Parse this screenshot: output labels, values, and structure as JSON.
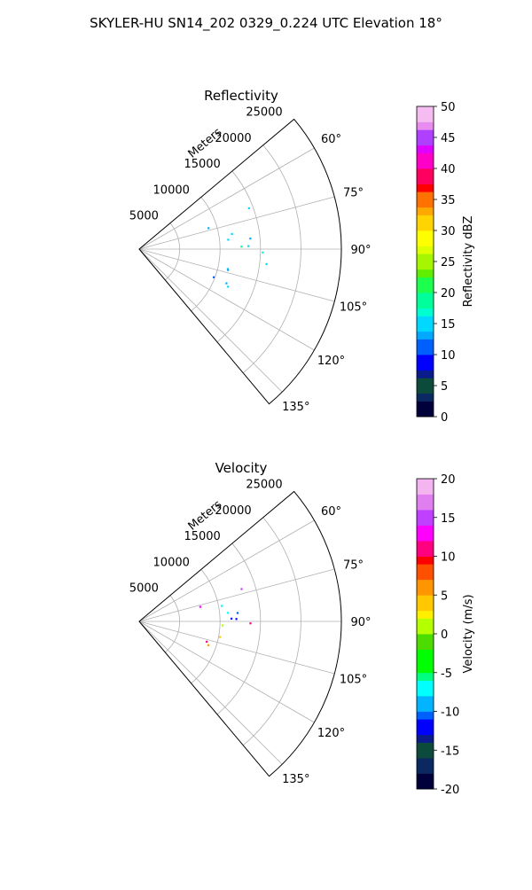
{
  "figure": {
    "title": "SKYLER-HU  SN14_202  0329_0.224 UTC Elevation 18°"
  },
  "chart_data": [
    {
      "type": "heatmap",
      "title": "Reflectivity",
      "projection": "polar-sector",
      "range_axis_label": "Meters",
      "range_ticks": [
        5000,
        10000,
        15000,
        20000,
        25000
      ],
      "range_tick_labels": [
        "5000",
        "10000",
        "15000",
        "20000",
        "25000"
      ],
      "range_lim": [
        0,
        25000
      ],
      "azimuth_lim": [
        50,
        140
      ],
      "azimuth_ticks": [
        60,
        75,
        90,
        105,
        120,
        135
      ],
      "azimuth_tick_labels": [
        "60°",
        "75°",
        "90°",
        "105°",
        "120°",
        "135°"
      ],
      "grid": true,
      "colorbar": {
        "label": "Reflectivity dBZ",
        "min": 0,
        "max": 50,
        "ticks": [
          0,
          5,
          10,
          15,
          20,
          25,
          30,
          35,
          40,
          45,
          50
        ],
        "tick_labels": [
          "0",
          "5",
          "10",
          "15",
          "20",
          "25",
          "30",
          "35",
          "40",
          "45",
          "50"
        ]
      },
      "echo_regions": [
        {
          "az_range": [
            65,
            88
          ],
          "r_range": [
            10000,
            15000
          ],
          "value": 14
        },
        {
          "az_range": [
            85,
            98
          ],
          "r_range": [
            11500,
            16500
          ],
          "value": 17
        },
        {
          "az_range": [
            98,
            113
          ],
          "r_range": [
            8500,
            15500
          ],
          "value": 13
        },
        {
          "az_range": [
            70,
            80
          ],
          "r_range": [
            8000,
            10000
          ],
          "value": 12
        },
        {
          "az_range": [
            93,
            96
          ],
          "r_range": [
            16500,
            18000
          ],
          "value": 18
        }
      ]
    },
    {
      "type": "heatmap",
      "title": "Velocity",
      "projection": "polar-sector",
      "range_axis_label": "Meters",
      "range_ticks": [
        5000,
        10000,
        15000,
        20000,
        25000
      ],
      "range_tick_labels": [
        "5000",
        "10000",
        "15000",
        "20000",
        "25000"
      ],
      "range_lim": [
        0,
        25000
      ],
      "azimuth_lim": [
        50,
        140
      ],
      "azimuth_ticks": [
        60,
        75,
        90,
        105,
        120,
        135
      ],
      "azimuth_tick_labels": [
        "60°",
        "75°",
        "90°",
        "105°",
        "120°",
        "135°"
      ],
      "grid": true,
      "colorbar": {
        "label": "Velocity (m/s)",
        "min": -20,
        "max": 20,
        "ticks": [
          -20,
          -15,
          -10,
          -5,
          0,
          5,
          10,
          15,
          20
        ],
        "tick_labels": [
          "-20",
          "-15",
          "-10",
          "-5",
          "0",
          "5",
          "10",
          "15",
          "20"
        ]
      },
      "echo_regions": [
        {
          "az_range": [
            65,
            88
          ],
          "r_range": [
            10000,
            13000
          ],
          "value": -8
        },
        {
          "az_range": [
            80,
            100
          ],
          "r_range": [
            10500,
            12500
          ],
          "value": -11
        },
        {
          "az_range": [
            65,
            92
          ],
          "r_range": [
            13000,
            14500
          ],
          "value": 14
        },
        {
          "az_range": [
            92,
            112
          ],
          "r_range": [
            9500,
            12000
          ],
          "value": 2
        },
        {
          "az_range": [
            98,
            115
          ],
          "r_range": [
            7500,
            9500
          ],
          "value": 9
        },
        {
          "az_range": [
            93,
            96
          ],
          "r_range": [
            16000,
            17500
          ],
          "value": -6
        },
        {
          "az_range": [
            70,
            80
          ],
          "r_range": [
            7000,
            8500
          ],
          "value": 12
        }
      ]
    }
  ]
}
